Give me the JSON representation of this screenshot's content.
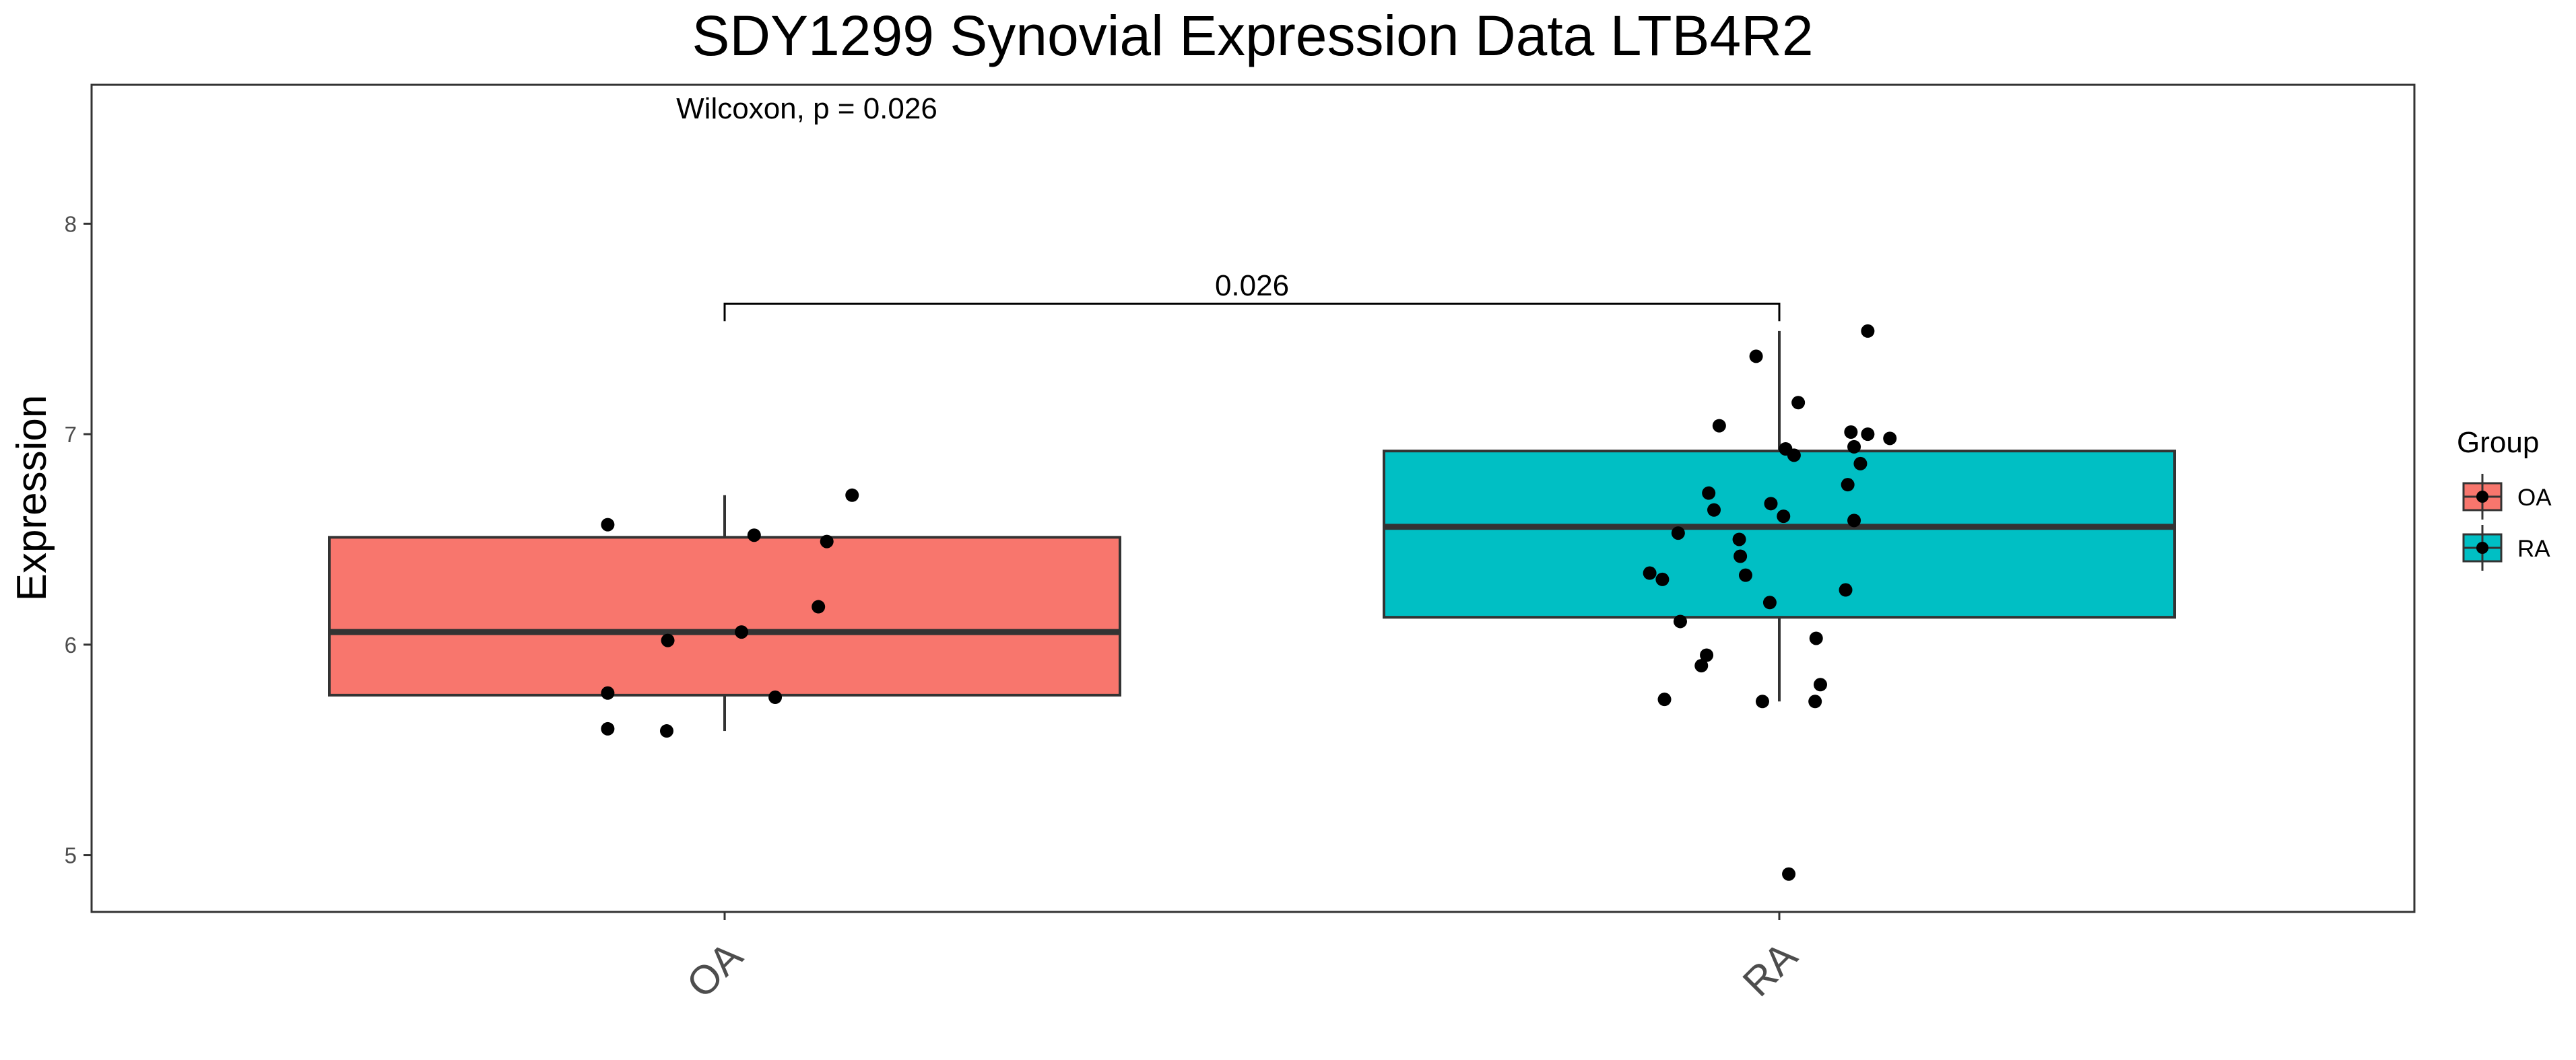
{
  "chart_data": {
    "type": "box",
    "title": "SDY1299 Synovial Expression Data LTB4R2",
    "xlabel": "",
    "ylabel": "Expression",
    "ylim": [
      4.73,
      8.66
    ],
    "yticks": [
      5,
      6,
      7,
      8
    ],
    "grid": false,
    "categories": [
      "OA",
      "RA"
    ],
    "annotation": "Wilcoxon, p = 0.026",
    "bracket": {
      "from": "OA",
      "to": "RA",
      "y": 7.62,
      "label": "0.026"
    },
    "legend": {
      "title": "Group",
      "placement": "right",
      "entries": [
        {
          "label": "OA",
          "color": "#F8766D"
        },
        {
          "label": "RA",
          "color": "#00BFC4"
        }
      ]
    },
    "series": [
      {
        "group": "OA",
        "color": "#F8766D",
        "box": {
          "lower_whisker": 5.59,
          "q1": 5.76,
          "median": 6.06,
          "q3": 6.51,
          "upper_whisker": 6.71
        },
        "points": [
          {
            "x": -0.111,
            "y": 6.57
          },
          {
            "x": 0.028,
            "y": 6.52
          },
          {
            "x": 0.121,
            "y": 6.71
          },
          {
            "x": 0.097,
            "y": 6.49
          },
          {
            "x": 0.089,
            "y": 6.18
          },
          {
            "x": -0.054,
            "y": 6.02
          },
          {
            "x": 0.016,
            "y": 6.06
          },
          {
            "x": -0.111,
            "y": 5.77
          },
          {
            "x": 0.048,
            "y": 5.75
          },
          {
            "x": -0.111,
            "y": 5.6
          },
          {
            "x": -0.055,
            "y": 5.59
          }
        ]
      },
      {
        "group": "RA",
        "color": "#00BFC4",
        "box": {
          "lower_whisker": 5.73,
          "q1": 6.13,
          "median": 6.56,
          "q3": 6.92,
          "upper_whisker": 7.49
        },
        "points": [
          {
            "x": 0.084,
            "y": 7.49
          },
          {
            "x": -0.022,
            "y": 7.37
          },
          {
            "x": 0.018,
            "y": 7.15
          },
          {
            "x": -0.057,
            "y": 7.04
          },
          {
            "x": 0.068,
            "y": 7.01
          },
          {
            "x": 0.084,
            "y": 7.0
          },
          {
            "x": 0.105,
            "y": 6.98
          },
          {
            "x": 0.071,
            "y": 6.94
          },
          {
            "x": 0.006,
            "y": 6.93
          },
          {
            "x": 0.014,
            "y": 6.9
          },
          {
            "x": 0.077,
            "y": 6.86
          },
          {
            "x": 0.065,
            "y": 6.76
          },
          {
            "x": -0.067,
            "y": 6.72
          },
          {
            "x": -0.062,
            "y": 6.64
          },
          {
            "x": -0.008,
            "y": 6.67
          },
          {
            "x": 0.004,
            "y": 6.61
          },
          {
            "x": 0.071,
            "y": 6.59
          },
          {
            "x": -0.096,
            "y": 6.53
          },
          {
            "x": -0.038,
            "y": 6.5
          },
          {
            "x": -0.037,
            "y": 6.42
          },
          {
            "x": -0.123,
            "y": 6.34
          },
          {
            "x": -0.111,
            "y": 6.31
          },
          {
            "x": -0.032,
            "y": 6.33
          },
          {
            "x": 0.063,
            "y": 6.26
          },
          {
            "x": -0.009,
            "y": 6.2
          },
          {
            "x": -0.094,
            "y": 6.11
          },
          {
            "x": 0.035,
            "y": 6.03
          },
          {
            "x": -0.069,
            "y": 5.95
          },
          {
            "x": -0.074,
            "y": 5.9
          },
          {
            "x": 0.039,
            "y": 5.81
          },
          {
            "x": -0.109,
            "y": 5.74
          },
          {
            "x": -0.016,
            "y": 5.73
          },
          {
            "x": 0.034,
            "y": 5.73
          },
          {
            "x": 0.009,
            "y": 4.91
          }
        ]
      }
    ]
  }
}
